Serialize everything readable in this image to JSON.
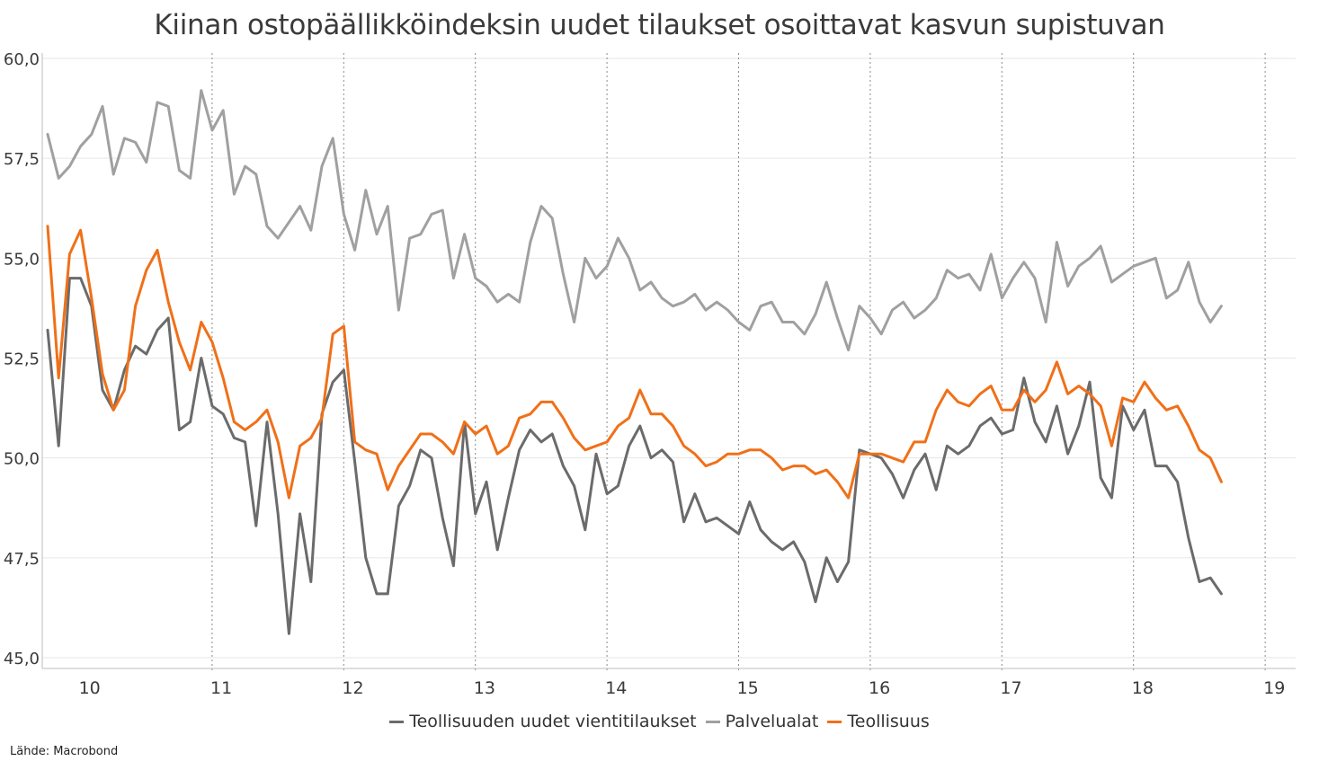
{
  "title": "Kiinan ostopäällikköindeksin uudet tilaukset osoittavat kasvun supistuvan",
  "source": "Lähde: Macrobond",
  "chart_data": {
    "type": "line",
    "title": "Kiinan ostopäällikköindeksin uudet tilaukset osoittavat kasvun supistuvan",
    "xlabel": "",
    "ylabel": "",
    "ylim": [
      45.0,
      60.0
    ],
    "yticks": [
      "45,0",
      "47,5",
      "50,0",
      "52,5",
      "55,0",
      "57,5",
      "60,0"
    ],
    "ytick_values": [
      45.0,
      47.5,
      50.0,
      52.5,
      55.0,
      57.5,
      60.0
    ],
    "xticks": [
      "10",
      "11",
      "12",
      "13",
      "14",
      "15",
      "16",
      "17",
      "18",
      "19"
    ],
    "x_start": "2009-09",
    "x_end": "2018-12",
    "frequency": "monthly",
    "grid": true,
    "legend_position": "bottom",
    "series": [
      {
        "name": "Teollisuuden uudet vientitilaukset",
        "color": "#6b6b6b",
        "values": [
          53.2,
          50.3,
          54.5,
          54.5,
          53.8,
          51.7,
          51.2,
          52.2,
          52.8,
          52.6,
          53.2,
          53.5,
          50.7,
          50.9,
          52.5,
          51.3,
          51.1,
          50.5,
          50.4,
          48.3,
          50.9,
          48.6,
          45.6,
          48.6,
          46.9,
          51.1,
          51.9,
          52.2,
          49.9,
          47.5,
          46.6,
          46.6,
          48.8,
          49.3,
          50.2,
          50.0,
          48.5,
          47.3,
          50.9,
          48.6,
          49.4,
          47.7,
          49.0,
          50.2,
          50.7,
          50.4,
          50.6,
          49.8,
          49.3,
          48.2,
          50.1,
          49.1,
          49.3,
          50.3,
          50.8,
          50.0,
          50.2,
          49.9,
          48.4,
          49.1,
          48.4,
          48.5,
          48.3,
          48.1,
          48.9,
          48.2,
          47.9,
          47.7,
          47.9,
          47.4,
          46.4,
          47.5,
          46.9,
          47.4,
          50.2,
          50.1,
          50.0,
          49.6,
          49.0,
          49.7,
          50.1,
          49.2,
          50.3,
          50.1,
          50.3,
          50.8,
          51.0,
          50.6,
          50.7,
          52.0,
          50.9,
          50.4,
          51.3,
          50.1,
          50.8,
          51.9,
          49.5,
          49.0,
          51.3,
          50.7,
          51.2,
          49.8,
          49.8,
          49.4,
          48.0,
          46.9,
          47.0,
          46.6
        ]
      },
      {
        "name": "Palvelualat",
        "color": "#a0a0a0",
        "values": [
          58.1,
          57.0,
          57.3,
          57.8,
          58.1,
          58.8,
          57.1,
          58.0,
          57.9,
          57.4,
          58.9,
          58.8,
          57.2,
          57.0,
          59.2,
          58.2,
          58.7,
          56.6,
          57.3,
          57.1,
          55.8,
          55.5,
          55.9,
          56.3,
          55.7,
          57.3,
          58.0,
          56.1,
          55.2,
          56.7,
          55.6,
          56.3,
          53.7,
          55.5,
          55.6,
          56.1,
          56.2,
          54.5,
          55.6,
          54.5,
          54.3,
          53.9,
          54.1,
          53.9,
          55.4,
          56.3,
          56.0,
          54.6,
          53.4,
          55.0,
          54.5,
          54.8,
          55.5,
          55.0,
          54.2,
          54.4,
          54.0,
          53.8,
          53.9,
          54.1,
          53.7,
          53.9,
          53.7,
          53.4,
          53.2,
          53.8,
          53.9,
          53.4,
          53.4,
          53.1,
          53.6,
          54.4,
          53.5,
          52.7,
          53.8,
          53.5,
          53.1,
          53.7,
          53.9,
          53.5,
          53.7,
          54.0,
          54.7,
          54.5,
          54.6,
          54.2,
          55.1,
          54.0,
          54.5,
          54.9,
          54.5,
          53.4,
          55.4,
          54.3,
          54.8,
          55.0,
          55.3,
          54.4,
          54.6,
          54.8,
          54.9,
          55.0,
          54.0,
          54.2,
          54.9,
          53.9,
          53.4,
          53.8
        ]
      },
      {
        "name": "Teollisuus",
        "color": "#f07018",
        "values": [
          55.8,
          52.0,
          55.1,
          55.7,
          54.0,
          52.1,
          51.2,
          51.7,
          53.8,
          54.7,
          55.2,
          53.9,
          52.9,
          52.2,
          53.4,
          52.9,
          52.0,
          50.9,
          50.7,
          50.9,
          51.2,
          50.4,
          49.0,
          50.3,
          50.5,
          51.0,
          53.1,
          53.3,
          50.4,
          50.2,
          50.1,
          49.2,
          49.8,
          50.2,
          50.6,
          50.6,
          50.4,
          50.1,
          50.9,
          50.6,
          50.8,
          50.1,
          50.3,
          51.0,
          51.1,
          51.4,
          51.4,
          51.0,
          50.5,
          50.2,
          50.3,
          50.4,
          50.8,
          51.0,
          51.7,
          51.1,
          51.1,
          50.8,
          50.3,
          50.1,
          49.8,
          49.9,
          50.1,
          50.1,
          50.2,
          50.2,
          50.0,
          49.7,
          49.8,
          49.8,
          49.6,
          49.7,
          49.4,
          49.0,
          50.1,
          50.1,
          50.1,
          50.0,
          49.9,
          50.4,
          50.4,
          51.2,
          51.7,
          51.4,
          51.3,
          51.6,
          51.8,
          51.2,
          51.2,
          51.7,
          51.4,
          51.7,
          52.4,
          51.6,
          51.8,
          51.6,
          51.3,
          50.3,
          51.5,
          51.4,
          51.9,
          51.5,
          51.2,
          51.3,
          50.8,
          50.2,
          50.0,
          49.4
        ]
      }
    ]
  }
}
